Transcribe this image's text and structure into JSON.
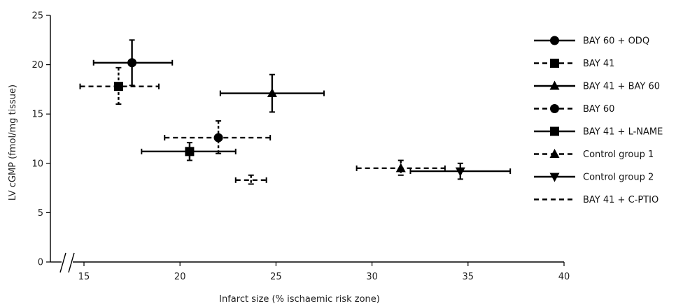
{
  "chart_data": {
    "type": "scatter",
    "xlabel": "Infarct size (% ischaemic risk zone)",
    "ylabel": "LV cGMP (fmol/mg tissue)",
    "xlim": [
      15,
      40
    ],
    "ylim": [
      0,
      25
    ],
    "x_ticks": [
      "15",
      "20",
      "25",
      "30",
      "35",
      "40"
    ],
    "y_ticks": [
      "0",
      "5",
      "10",
      "15",
      "20",
      "25"
    ],
    "axis_break": "both",
    "grid": false,
    "legend_position": "right",
    "series": [
      {
        "name": "BAY 60 + ODQ",
        "marker": "circle",
        "line": "solid",
        "x": 17.5,
        "y": 20.2,
        "x_err": [
          15.5,
          19.6
        ],
        "y_err": [
          17.9,
          22.5
        ]
      },
      {
        "name": "BAY 41",
        "marker": "square",
        "line": "dashed",
        "x": 16.8,
        "y": 17.8,
        "x_err": [
          14.8,
          18.9
        ],
        "y_err": [
          16.0,
          19.7
        ]
      },
      {
        "name": "BAY 41 + BAY 60",
        "marker": "triangle-up",
        "line": "solid",
        "x": 24.8,
        "y": 17.1,
        "x_err": [
          22.1,
          27.5
        ],
        "y_err": [
          15.2,
          19.0
        ]
      },
      {
        "name": "BAY 60",
        "marker": "circle",
        "line": "dashed",
        "x": 22.0,
        "y": 12.6,
        "x_err": [
          19.2,
          24.7
        ],
        "y_err": [
          11.0,
          14.3
        ]
      },
      {
        "name": "BAY 41 + L-NAME",
        "marker": "square",
        "line": "solid",
        "x": 20.5,
        "y": 11.2,
        "x_err": [
          18.0,
          22.9
        ],
        "y_err": [
          10.3,
          12.1
        ]
      },
      {
        "name": "Control group 1",
        "marker": "triangle-up",
        "line": "dashed",
        "x": 31.5,
        "y": 9.5,
        "x_err": [
          29.2,
          33.8
        ],
        "y_err": [
          8.8,
          10.3
        ]
      },
      {
        "name": "Control group 2",
        "marker": "triangle-down",
        "line": "solid",
        "x": 34.6,
        "y": 9.2,
        "x_err": [
          32.0,
          37.2
        ],
        "y_err": [
          8.4,
          10.0
        ]
      },
      {
        "name": "BAY 41 + C-PTIO",
        "marker": "none",
        "line": "dashed",
        "x": 23.7,
        "y": 8.3,
        "x_err": [
          22.9,
          24.5
        ],
        "y_err": [
          7.9,
          8.8
        ]
      }
    ]
  }
}
